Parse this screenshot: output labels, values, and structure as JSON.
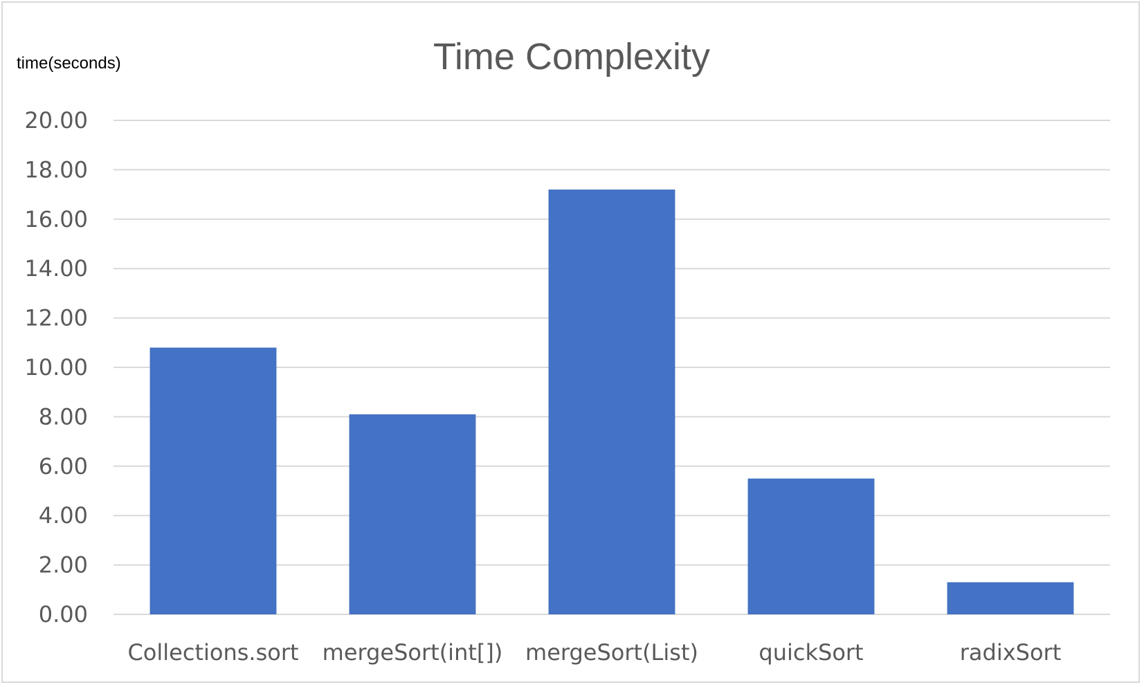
{
  "chart_data": {
    "type": "bar",
    "title": "Time Complexity",
    "xlabel": "",
    "ylabel": "time(seconds)",
    "categories": [
      "Collections.sort",
      "mergeSort(int[])",
      "mergeSort(List)",
      "quickSort",
      "radixSort"
    ],
    "values": [
      10.8,
      8.1,
      17.2,
      5.5,
      1.3
    ],
    "ylim": [
      0,
      20
    ],
    "ytick_step": 2,
    "ytick_decimals": 2,
    "grid": true,
    "legend": "none",
    "colors": {
      "bar": "#4472c4",
      "grid": "#d9d9d9",
      "text": "#595959"
    }
  }
}
